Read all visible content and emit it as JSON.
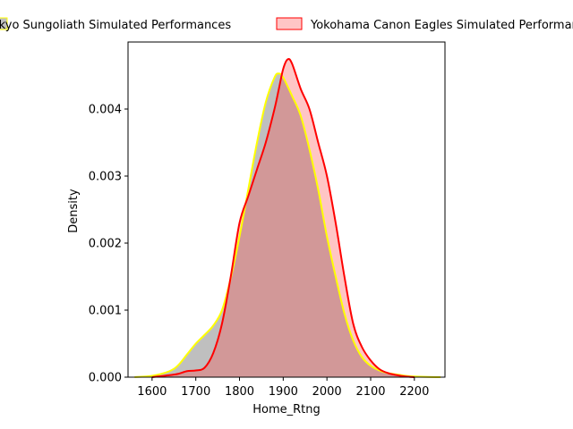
{
  "chart_data": {
    "type": "area",
    "title": "",
    "xlabel": "Home_Rtng",
    "ylabel": "Density",
    "xlim": [
      1545,
      2270
    ],
    "ylim": [
      0,
      0.005
    ],
    "xticks": [
      1600,
      1700,
      1800,
      1900,
      2000,
      2100,
      2200
    ],
    "yticks": [
      0.0,
      0.001,
      0.002,
      0.003,
      0.004
    ],
    "xtick_labels": [
      "1600",
      "1700",
      "1800",
      "1900",
      "2000",
      "2100",
      "2200"
    ],
    "ytick_labels": [
      "0.000",
      "0.001",
      "0.002",
      "0.003",
      "0.004"
    ],
    "legend_placement": "top-center, above plot",
    "grid": false,
    "series": [
      {
        "name": "Tokyo Sungoliath Simulated Performances",
        "line_color": "#ffff00",
        "fill_color": "#808080",
        "fill_opacity": 0.5,
        "x": [
          1560,
          1600,
          1640,
          1660,
          1680,
          1700,
          1720,
          1740,
          1760,
          1780,
          1800,
          1820,
          1840,
          1860,
          1880,
          1890,
          1900,
          1920,
          1940,
          1960,
          1980,
          2000,
          2020,
          2040,
          2060,
          2080,
          2100,
          2120,
          2140,
          2160,
          2180,
          2200,
          2230,
          2260
        ],
        "y": [
          0.0,
          2e-05,
          9e-05,
          0.00018,
          0.00034,
          0.0005,
          0.00063,
          0.00077,
          0.001,
          0.00148,
          0.0021,
          0.0028,
          0.0035,
          0.0041,
          0.00447,
          0.00453,
          0.00447,
          0.0042,
          0.0039,
          0.0034,
          0.0028,
          0.0021,
          0.0015,
          0.00095,
          0.00055,
          0.0003,
          0.00017,
          0.0001,
          6e-05,
          4e-05,
          2e-05,
          1e-05,
          3e-06,
          0.0
        ]
      },
      {
        "name": "Yokohama Canon Eagles Simulated Performances",
        "line_color": "#ff0000",
        "fill_color": "#ff4040",
        "fill_opacity": 0.3,
        "x": [
          1600,
          1640,
          1660,
          1680,
          1700,
          1720,
          1740,
          1760,
          1780,
          1800,
          1820,
          1840,
          1860,
          1880,
          1890,
          1900,
          1910,
          1920,
          1940,
          1960,
          1980,
          2000,
          2020,
          2040,
          2060,
          2080,
          2100,
          2120,
          2140,
          2160,
          2180,
          2200
        ],
        "y": [
          0.0,
          3e-05,
          5e-05,
          9e-05,
          0.0001,
          0.00014,
          0.00036,
          0.0008,
          0.0015,
          0.0023,
          0.0027,
          0.0031,
          0.0035,
          0.004,
          0.0043,
          0.0046,
          0.00474,
          0.00468,
          0.0043,
          0.004,
          0.0035,
          0.003,
          0.0023,
          0.0015,
          0.0008,
          0.00045,
          0.00025,
          0.00012,
          6e-05,
          3e-05,
          1e-05,
          0.0
        ]
      }
    ]
  }
}
